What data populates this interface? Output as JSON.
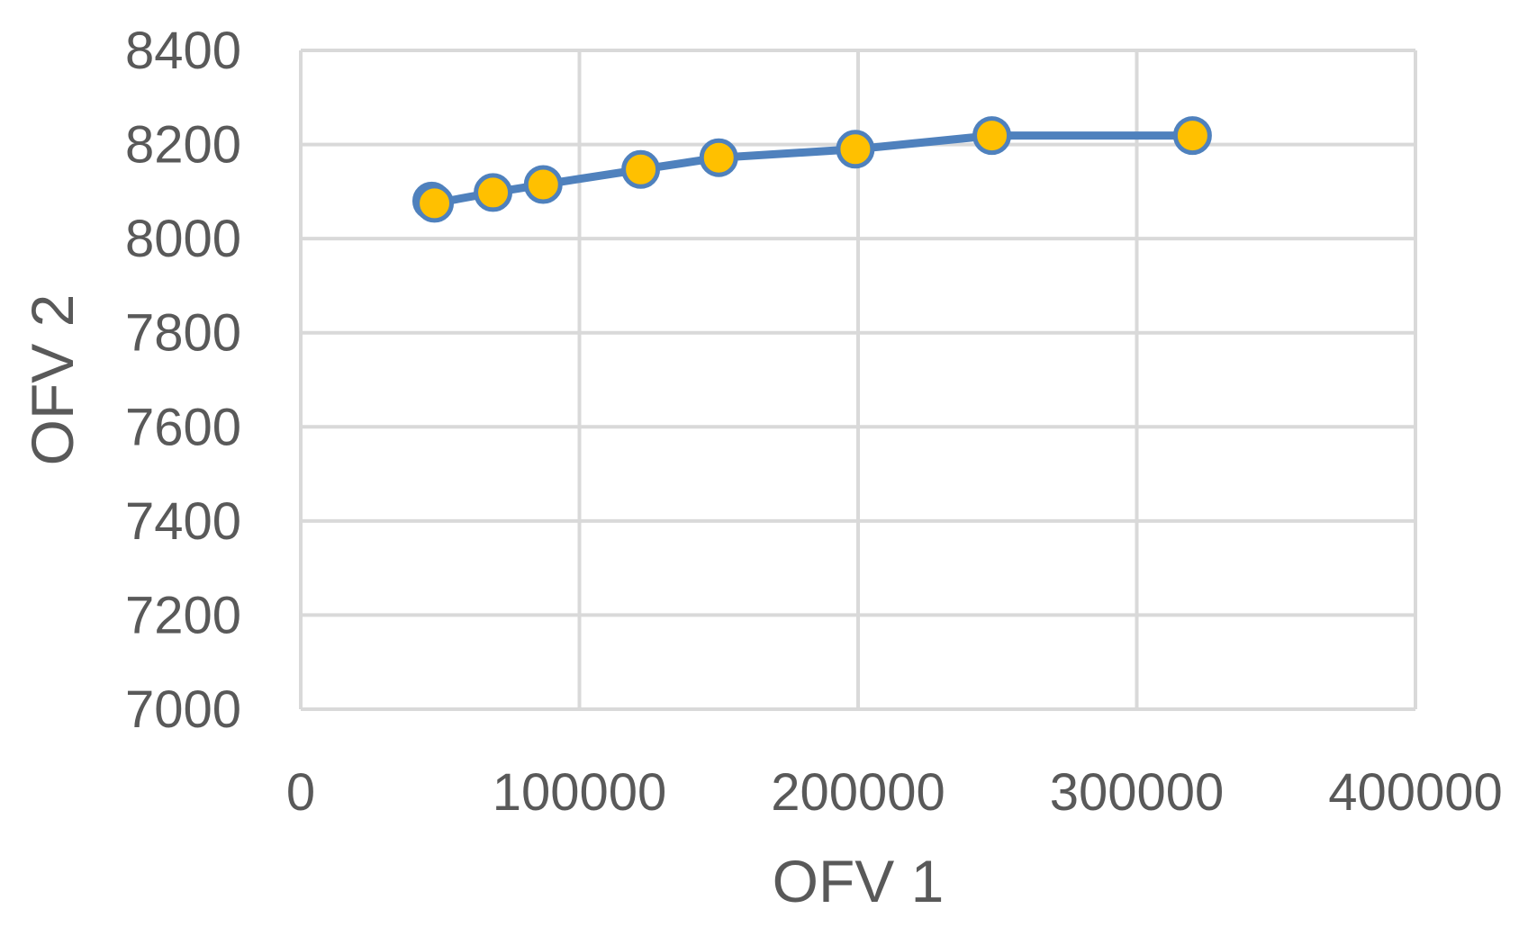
{
  "chart_data": {
    "type": "scatter",
    "title": "",
    "xlabel": "OFV 1",
    "ylabel": "OFV 2",
    "xlim": [
      0,
      400000
    ],
    "ylim": [
      7000,
      8400
    ],
    "x_ticks": [
      0,
      100000,
      200000,
      300000,
      400000
    ],
    "y_ticks": [
      7000,
      7200,
      7400,
      7600,
      7800,
      8000,
      8200,
      8400
    ],
    "x_tick_labels": [
      "0",
      "100000",
      "200000",
      "300000",
      "400000"
    ],
    "y_tick_labels": [
      "7000",
      "7200",
      "7400",
      "7600",
      "7800",
      "8000",
      "8200",
      "8400"
    ],
    "grid": true,
    "legend": "none",
    "series": [
      {
        "x": [
          47000,
          48000,
          69000,
          87000,
          122000,
          150000,
          199000,
          248000,
          320000
        ],
        "y": [
          8080,
          8075,
          8098,
          8115,
          8147,
          8172,
          8190,
          8219,
          8219
        ],
        "line_color": "#4f81bd",
        "marker_fill": "#ffc000",
        "marker_edge": "#4f81bd"
      }
    ]
  }
}
